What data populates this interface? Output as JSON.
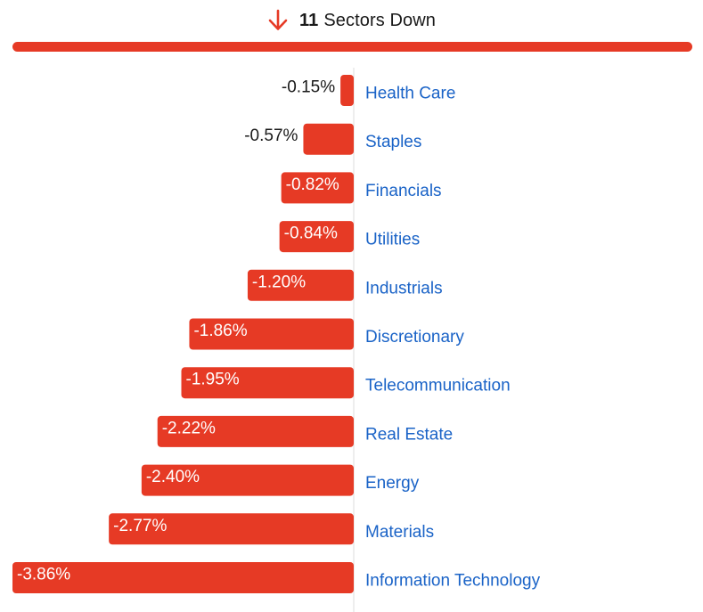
{
  "header": {
    "count": "11",
    "label": "Sectors Down",
    "icon": "arrow-down-icon"
  },
  "colors": {
    "negative": "#e63a25",
    "label": "#1a63c7",
    "text": "#1a1a1a",
    "axis": "#dddddd"
  },
  "chart_data": {
    "type": "bar",
    "orientation": "horizontal",
    "categories": [
      "Health Care",
      "Staples",
      "Financials",
      "Utilities",
      "Industrials",
      "Discretionary",
      "Telecommunication",
      "Real Estate",
      "Energy",
      "Materials",
      "Information Technology"
    ],
    "values": [
      -0.15,
      -0.57,
      -0.82,
      -0.84,
      -1.2,
      -1.86,
      -1.95,
      -2.22,
      -2.4,
      -2.77,
      -3.86
    ],
    "value_labels": [
      "-0.15%",
      "-0.57%",
      "-0.82%",
      "-0.84%",
      "-1.20%",
      "-1.86%",
      "-1.95%",
      "-2.22%",
      "-2.40%",
      "-2.77%",
      "-3.86%"
    ],
    "xlim": [
      -3.86,
      0
    ],
    "grid": false,
    "legend": "none"
  }
}
